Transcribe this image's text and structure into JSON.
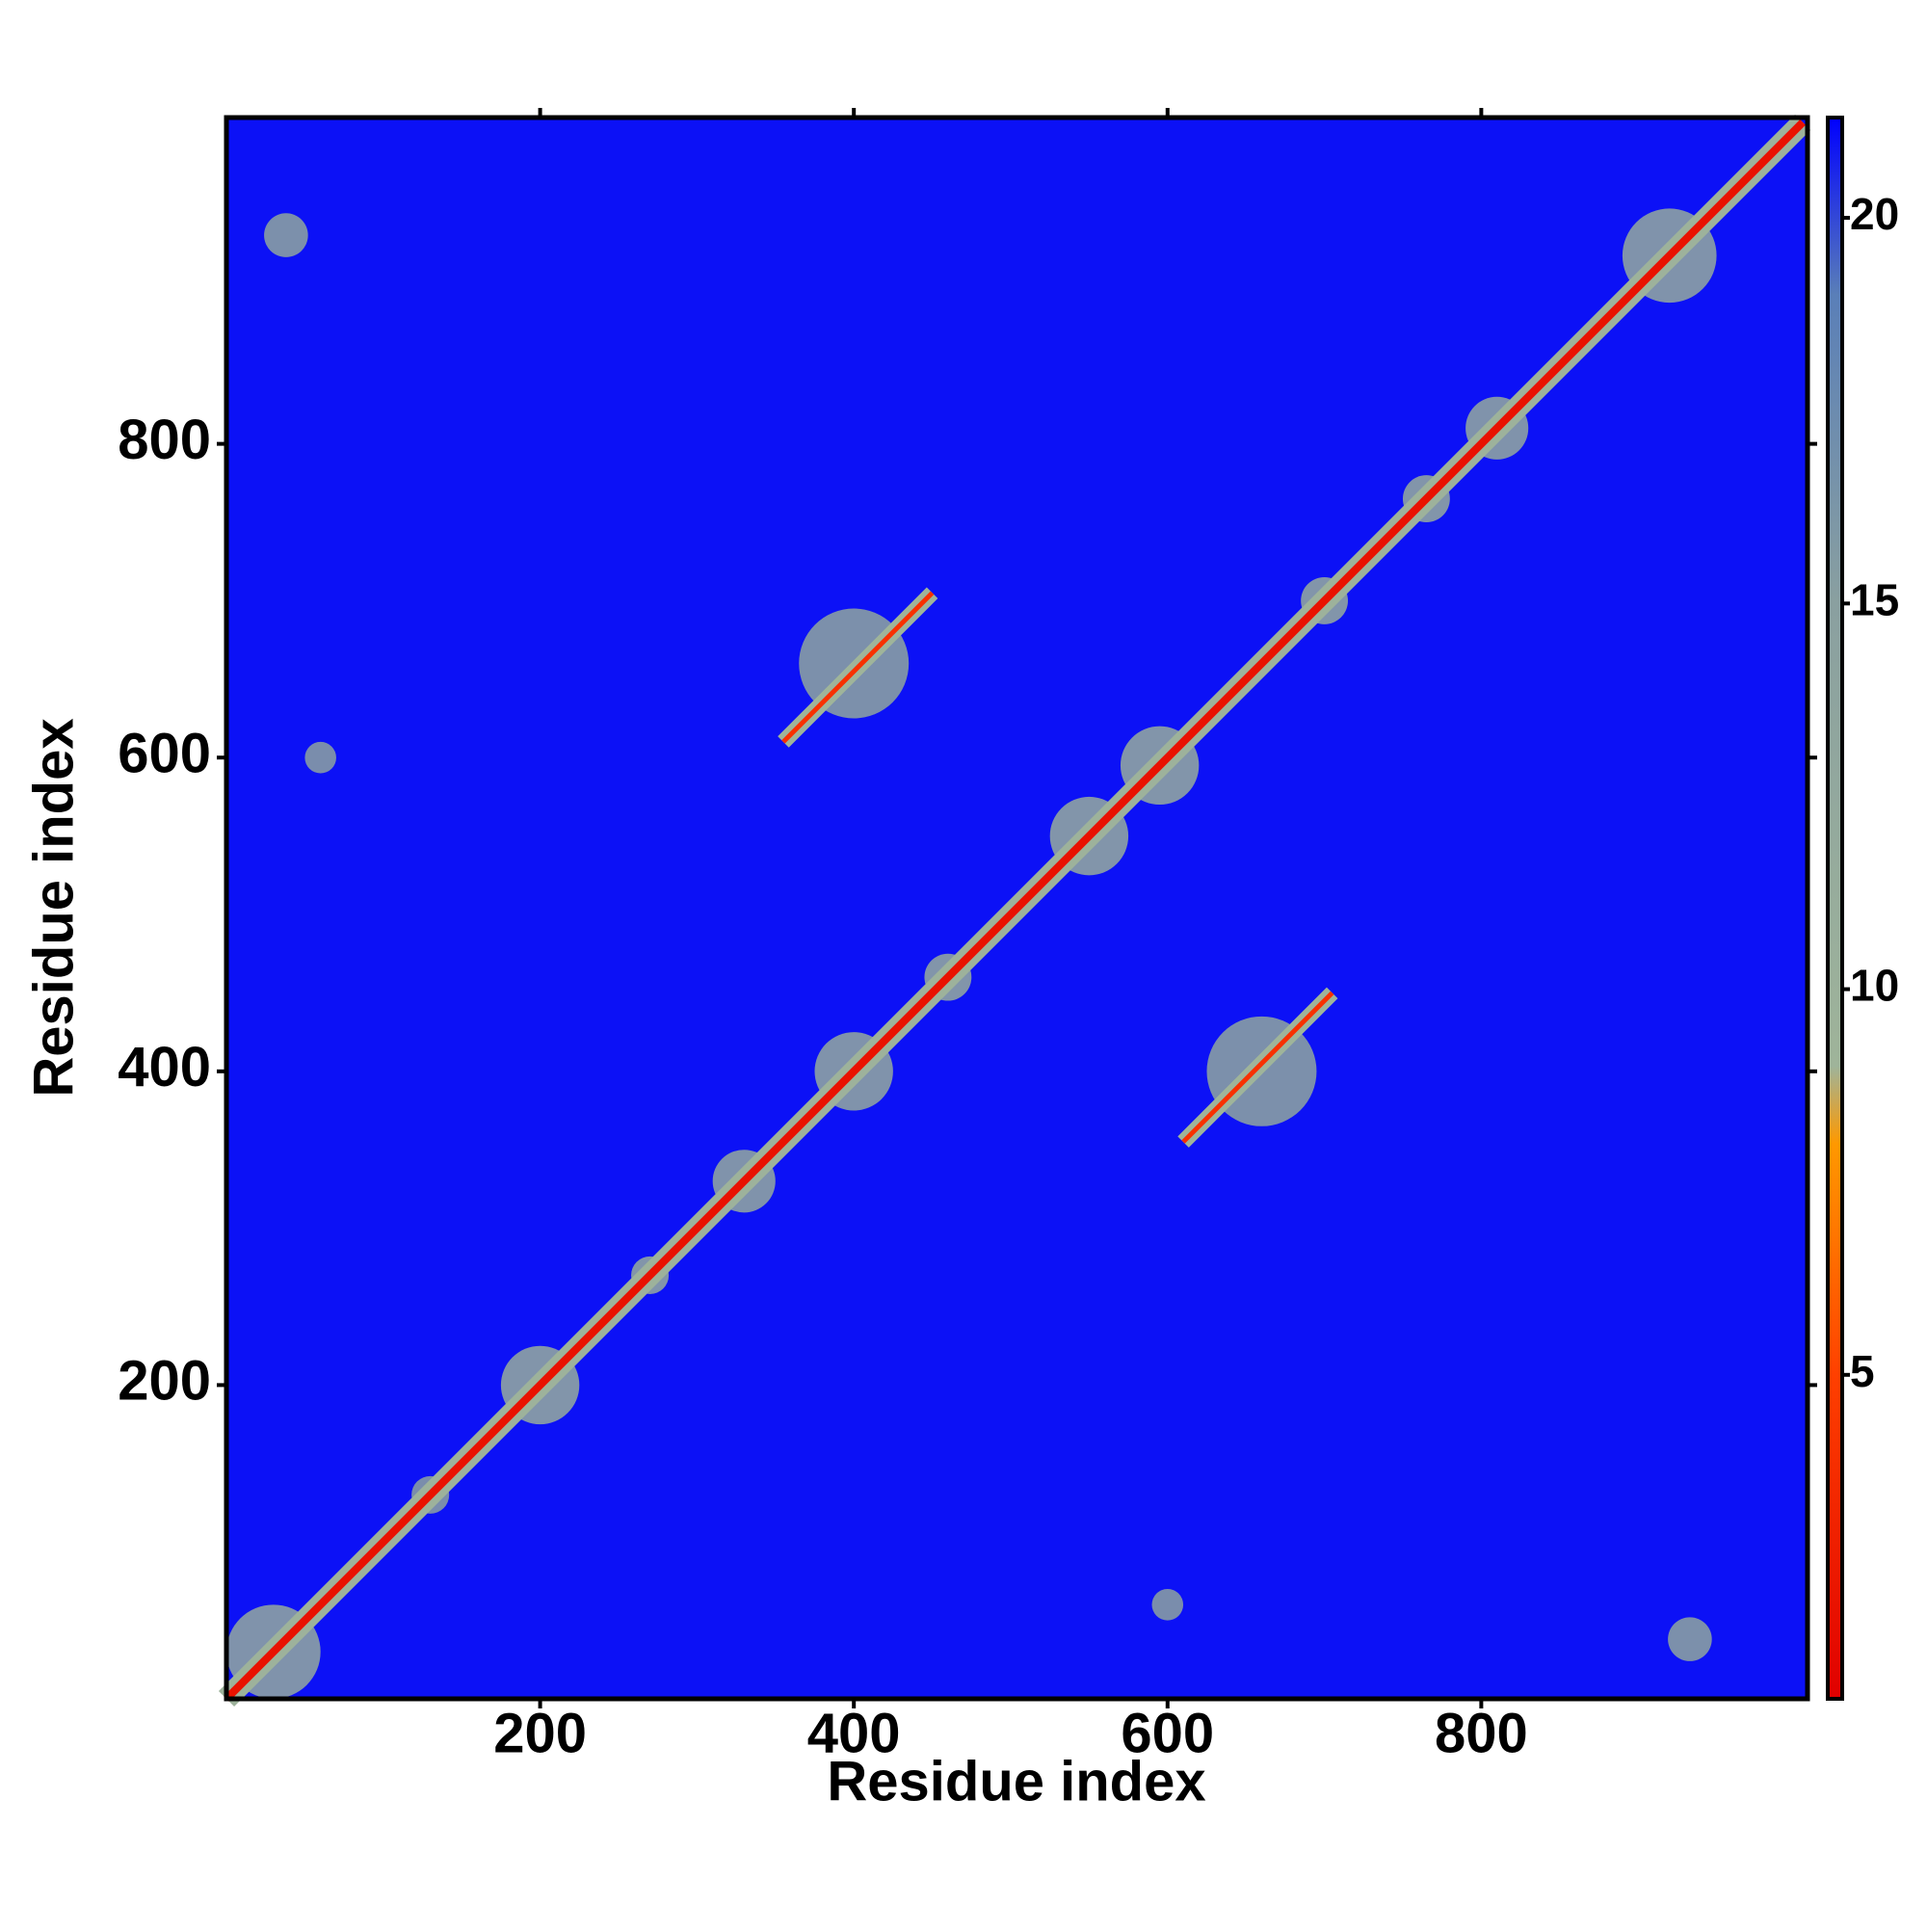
{
  "chart_data": {
    "type": "heatmap",
    "xlabel": "Residue index",
    "ylabel": "Residue index",
    "xlim": [
      0,
      1008
    ],
    "ylim": [
      0,
      1008
    ],
    "xticks": [
      200,
      400,
      600,
      800
    ],
    "yticks": [
      200,
      400,
      600,
      800
    ],
    "background_value": 21,
    "colorbar": {
      "lim": [
        0.8,
        21.3
      ],
      "ticks": [
        5,
        10,
        15,
        20
      ],
      "stops": [
        [
          0.8,
          "#e00000"
        ],
        [
          5,
          "#ff4000"
        ],
        [
          8,
          "#ff9900"
        ],
        [
          9,
          "#9fb49a"
        ],
        [
          15,
          "#8aa0a0"
        ],
        [
          19,
          "#5a7fb8"
        ],
        [
          21.3,
          "#0000ff"
        ]
      ]
    },
    "blobs": [
      {
        "x": 30,
        "y": 30,
        "size": 30,
        "value": 12
      },
      {
        "x": 38,
        "y": 933,
        "size": 14,
        "value": 13
      },
      {
        "x": 933,
        "y": 38,
        "size": 14,
        "value": 13
      },
      {
        "x": 130,
        "y": 130,
        "size": 12,
        "value": 14
      },
      {
        "x": 200,
        "y": 200,
        "size": 25,
        "value": 11
      },
      {
        "x": 270,
        "y": 270,
        "size": 12,
        "value": 11
      },
      {
        "x": 330,
        "y": 330,
        "size": 20,
        "value": 12
      },
      {
        "x": 400,
        "y": 400,
        "size": 25,
        "value": 12
      },
      {
        "x": 460,
        "y": 460,
        "size": 15,
        "value": 11
      },
      {
        "x": 550,
        "y": 550,
        "size": 25,
        "value": 11
      },
      {
        "x": 595,
        "y": 595,
        "size": 25,
        "value": 11
      },
      {
        "x": 700,
        "y": 700,
        "size": 15,
        "value": 11
      },
      {
        "x": 765,
        "y": 765,
        "size": 15,
        "value": 11
      },
      {
        "x": 810,
        "y": 810,
        "size": 20,
        "value": 12
      },
      {
        "x": 920,
        "y": 920,
        "size": 30,
        "value": 12
      },
      {
        "x": 660,
        "y": 400,
        "size": 35,
        "value": 13
      },
      {
        "x": 400,
        "y": 660,
        "size": 35,
        "value": 13
      },
      {
        "x": 600,
        "y": 60,
        "size": 10,
        "value": 14
      },
      {
        "x": 60,
        "y": 600,
        "size": 10,
        "value": 14
      }
    ],
    "segments": [
      {
        "x": [
          0,
          1005
        ],
        "y": [
          0,
          1005
        ],
        "width": 14,
        "value": 9.5
      },
      {
        "x": [
          0,
          1005
        ],
        "y": [
          0,
          1005
        ],
        "width": 5,
        "value": 2
      },
      {
        "x": [
          355,
          450
        ],
        "y": [
          610,
          705
        ],
        "width": 10,
        "value": 9
      },
      {
        "x": [
          355,
          450
        ],
        "y": [
          610,
          705
        ],
        "width": 3,
        "value": 4
      },
      {
        "x": [
          610,
          705
        ],
        "y": [
          355,
          450
        ],
        "width": 10,
        "value": 9
      },
      {
        "x": [
          610,
          705
        ],
        "y": [
          355,
          450
        ],
        "width": 3,
        "value": 4
      }
    ]
  }
}
